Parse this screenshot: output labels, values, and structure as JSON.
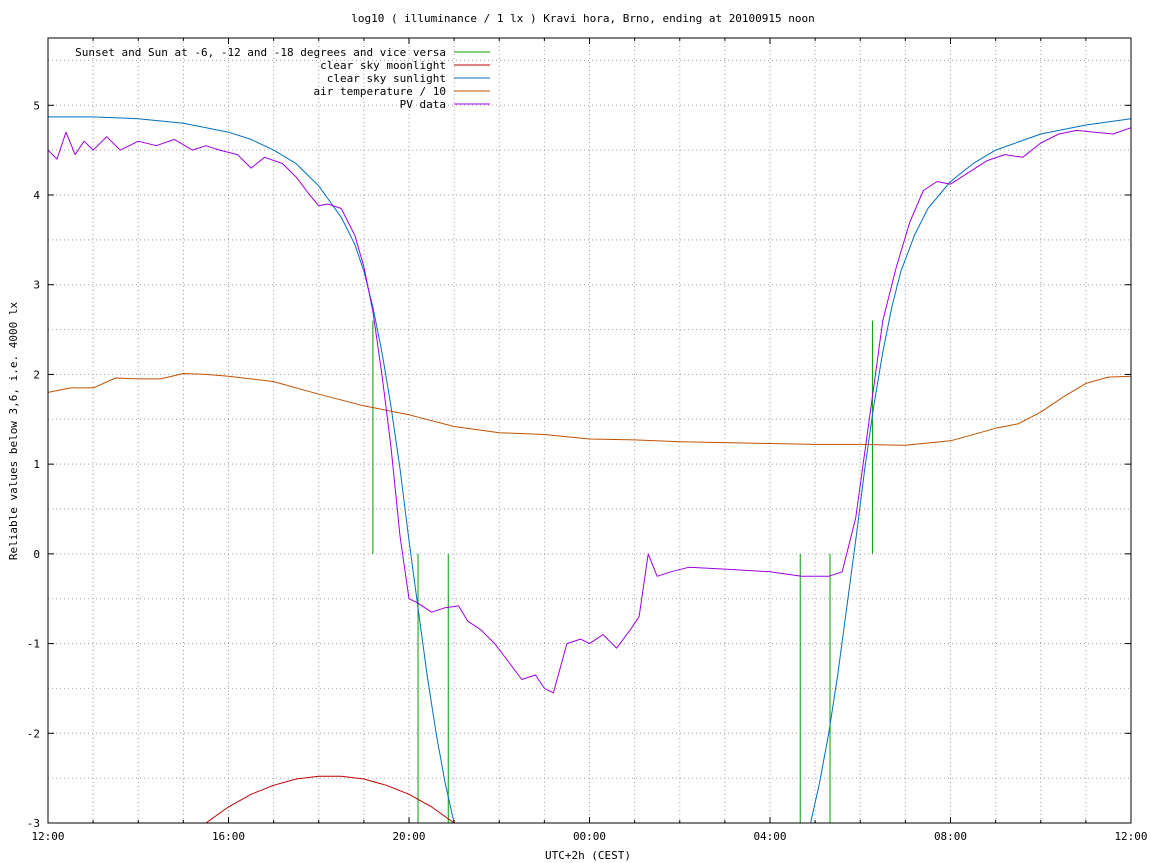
{
  "chart_data": {
    "type": "line",
    "title": "log10 ( illuminance / 1 lx ) Kravi hora, Brno, ending at 20100915 noon",
    "xlabel": "UTC+2h (CEST)",
    "ylabel": "Reliable values below 3,6, i.e. 4000 lx",
    "xlim": [
      0,
      24
    ],
    "ylim": [
      -3,
      5.75
    ],
    "grid": true,
    "legend_position": "top-left",
    "x_ticks": [
      {
        "value": 0,
        "label": "12:00"
      },
      {
        "value": 4,
        "label": "16:00"
      },
      {
        "value": 8,
        "label": "20:00"
      },
      {
        "value": 12,
        "label": "00:00"
      },
      {
        "value": 16,
        "label": "04:00"
      },
      {
        "value": 20,
        "label": "08:00"
      },
      {
        "value": 24,
        "label": "12:00"
      }
    ],
    "y_ticks": [
      {
        "value": 5,
        "label": "5"
      },
      {
        "value": 4,
        "label": "4"
      },
      {
        "value": 3,
        "label": "3"
      },
      {
        "value": 2,
        "label": "2"
      },
      {
        "value": 1,
        "label": "1"
      },
      {
        "value": 0,
        "label": "0"
      },
      {
        "value": -1,
        "label": "-1"
      },
      {
        "value": -2,
        "label": "-2"
      },
      {
        "value": -3,
        "label": "-3"
      }
    ],
    "series": [
      {
        "name": "Sunset and Sun at -6, -12 and -18 degrees and vice versa",
        "color": "#00a000",
        "kind": "vlines",
        "lines": [
          {
            "x": 7.2,
            "y0": 0,
            "y1": 2.6
          },
          {
            "x": 8.2,
            "y0": -3,
            "y1": 0
          },
          {
            "x": 8.87,
            "y0": -3,
            "y1": 0
          },
          {
            "x": 16.67,
            "y0": -3,
            "y1": 0
          },
          {
            "x": 17.33,
            "y0": -3,
            "y1": 0
          },
          {
            "x": 18.27,
            "y0": 0,
            "y1": 2.6
          }
        ]
      },
      {
        "name": "clear sky moonlight",
        "color": "#c00000",
        "kind": "line",
        "x": [
          3.5,
          4,
          4.5,
          5,
          5.5,
          6,
          6.5,
          7,
          7.5,
          8,
          8.5,
          9
        ],
        "y": [
          -3.0,
          -2.82,
          -2.68,
          -2.58,
          -2.51,
          -2.48,
          -2.48,
          -2.51,
          -2.58,
          -2.68,
          -2.82,
          -3.0
        ]
      },
      {
        "name": "clear sky sunlight",
        "color": "#0070c0",
        "kind": "line",
        "x": [
          0,
          1,
          2,
          3,
          4,
          4.5,
          5,
          5.5,
          6,
          6.5,
          6.8,
          7.0,
          7.2,
          7.4,
          7.6,
          7.8,
          8.0,
          8.2,
          8.4,
          8.6,
          8.8,
          9.0,
          16.9,
          17.1,
          17.3,
          17.5,
          17.7,
          17.9,
          18.1,
          18.3,
          18.5,
          18.7,
          18.9,
          19.2,
          19.5,
          20,
          20.5,
          21,
          22,
          23,
          24
        ],
        "y": [
          4.87,
          4.87,
          4.85,
          4.8,
          4.7,
          4.62,
          4.5,
          4.35,
          4.1,
          3.75,
          3.45,
          3.15,
          2.75,
          2.25,
          1.65,
          0.95,
          0.15,
          -0.6,
          -1.35,
          -2.0,
          -2.55,
          -3.0,
          -3.0,
          -2.55,
          -2.0,
          -1.35,
          -0.6,
          0.15,
          0.95,
          1.65,
          2.25,
          2.75,
          3.15,
          3.55,
          3.85,
          4.15,
          4.35,
          4.5,
          4.68,
          4.78,
          4.85
        ]
      },
      {
        "name": "air temperature / 10",
        "color": "#c05000",
        "kind": "line",
        "x": [
          0,
          0.5,
          1,
          1.5,
          2,
          2.5,
          3,
          3.5,
          4,
          5,
          6,
          7,
          8,
          9,
          10,
          11,
          12,
          13,
          14,
          15,
          16,
          17,
          18,
          19,
          20,
          21,
          21.5,
          22,
          22.5,
          23,
          23.5,
          24
        ],
        "y": [
          1.8,
          1.85,
          1.85,
          1.96,
          1.95,
          1.95,
          2.01,
          2.0,
          1.98,
          1.92,
          1.78,
          1.65,
          1.55,
          1.42,
          1.35,
          1.33,
          1.28,
          1.27,
          1.25,
          1.24,
          1.23,
          1.22,
          1.22,
          1.21,
          1.26,
          1.4,
          1.45,
          1.58,
          1.75,
          1.9,
          1.97,
          1.98
        ]
      },
      {
        "name": "PV data",
        "color": "#a000e0",
        "kind": "line",
        "x": [
          0,
          0.2,
          0.4,
          0.6,
          0.8,
          1,
          1.3,
          1.6,
          2,
          2.4,
          2.8,
          3.2,
          3.5,
          3.8,
          4.2,
          4.5,
          4.8,
          5.2,
          5.5,
          5.8,
          6.0,
          6.2,
          6.5,
          6.8,
          7.0,
          7.2,
          7.4,
          7.6,
          7.8,
          8.0,
          8.2,
          8.5,
          8.8,
          9.1,
          9.3,
          9.6,
          9.9,
          10.2,
          10.5,
          10.8,
          11.0,
          11.2,
          11.5,
          11.8,
          12.0,
          12.3,
          12.6,
          12.9,
          13.1,
          13.3,
          13.5,
          13.8,
          14.2,
          15,
          16,
          16.7,
          17.0,
          17.3,
          17.6,
          17.9,
          18.2,
          18.5,
          18.8,
          19.1,
          19.4,
          19.7,
          20.0,
          20.4,
          20.8,
          21.2,
          21.6,
          22,
          22.4,
          22.8,
          23.2,
          23.6,
          24
        ],
        "y": [
          4.5,
          4.4,
          4.7,
          4.45,
          4.6,
          4.5,
          4.65,
          4.5,
          4.6,
          4.55,
          4.62,
          4.5,
          4.55,
          4.5,
          4.45,
          4.3,
          4.42,
          4.35,
          4.2,
          4.0,
          3.88,
          3.9,
          3.85,
          3.55,
          3.2,
          2.7,
          2.0,
          1.2,
          0.2,
          -0.5,
          -0.55,
          -0.65,
          -0.6,
          -0.58,
          -0.75,
          -0.85,
          -1.0,
          -1.2,
          -1.4,
          -1.35,
          -1.5,
          -1.55,
          -1.0,
          -0.95,
          -1.0,
          -0.9,
          -1.05,
          -0.85,
          -0.7,
          0.0,
          -0.25,
          -0.2,
          -0.15,
          -0.17,
          -0.2,
          -0.25,
          -0.25,
          -0.25,
          -0.2,
          0.4,
          1.5,
          2.6,
          3.2,
          3.7,
          4.05,
          4.15,
          4.12,
          4.25,
          4.38,
          4.45,
          4.42,
          4.58,
          4.68,
          4.72,
          4.7,
          4.68,
          4.75
        ]
      }
    ]
  }
}
